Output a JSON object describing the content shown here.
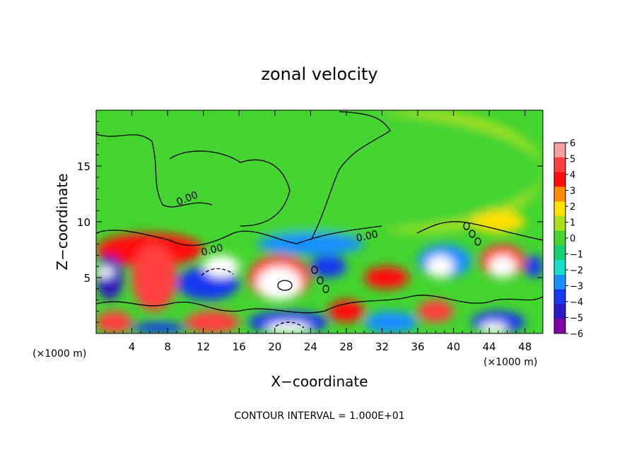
{
  "chart_data": {
    "type": "heatmap",
    "title": "zonal velocity",
    "xlabel": "X−coordinate",
    "ylabel": "Z−coordinate",
    "xlim": [
      0,
      50
    ],
    "ylim": [
      0,
      20
    ],
    "x_ticks": [
      4,
      8,
      12,
      16,
      20,
      24,
      28,
      32,
      36,
      40,
      44,
      48
    ],
    "y_ticks": [
      5,
      10,
      15
    ],
    "x_unit_left": "(×1000 m)",
    "x_unit_right": "(×1000 m)",
    "contour_label": "0.00",
    "footer": "CONTOUR INTERVAL = 1.000E+01",
    "colorbar": {
      "levels": [
        6,
        5,
        4,
        3,
        2,
        1,
        0,
        -1,
        -2,
        -3,
        -4,
        -5,
        -6
      ],
      "labels": [
        "6",
        "5",
        "4",
        "3",
        "2",
        "1",
        "0",
        "−1",
        "−2",
        "−3",
        "−4",
        "−5",
        "−6"
      ],
      "colors": [
        "#f4a0a0",
        "#ff4040",
        "#ff1010",
        "#ff8c00",
        "#ffe000",
        "#a8e020",
        "#44d430",
        "#18d070",
        "#18e0c8",
        "#1890ff",
        "#1838f0",
        "#3018c0",
        "#8000a8"
      ]
    },
    "regions": [
      {
        "value": 1,
        "x": [
          22,
          50
        ],
        "z": [
          9,
          20
        ]
      },
      {
        "value": 2,
        "x": [
          42,
          48
        ],
        "z": [
          9,
          11
        ]
      },
      {
        "value": 0,
        "x": [
          0,
          50
        ],
        "z": [
          9,
          20
        ]
      },
      {
        "value": -3,
        "x": [
          18,
          30
        ],
        "z": [
          7,
          9
        ]
      },
      {
        "value": 4,
        "x": [
          0,
          12
        ],
        "z": [
          6,
          9
        ]
      },
      {
        "value": -5,
        "x": [
          0,
          3
        ],
        "z": [
          3,
          7
        ]
      },
      {
        "value": 6,
        "x": [
          0,
          2
        ],
        "z": [
          5,
          6
        ]
      },
      {
        "value": 5,
        "x": [
          4,
          9
        ],
        "z": [
          2,
          8
        ]
      },
      {
        "value": -4,
        "x": [
          9,
          16
        ],
        "z": [
          3,
          6
        ]
      },
      {
        "value": 6,
        "x": [
          12,
          16
        ],
        "z": [
          5,
          7
        ]
      },
      {
        "value": 5,
        "x": [
          17,
          24
        ],
        "z": [
          3,
          7
        ]
      },
      {
        "value": 6,
        "x": [
          18,
          23
        ],
        "z": [
          3,
          6
        ]
      },
      {
        "value": -4,
        "x": [
          24,
          28
        ],
        "z": [
          5,
          7
        ]
      },
      {
        "value": 4,
        "x": [
          30,
          35
        ],
        "z": [
          4,
          6
        ]
      },
      {
        "value": -3,
        "x": [
          36,
          42
        ],
        "z": [
          5,
          8
        ]
      },
      {
        "value": 6,
        "x": [
          37,
          40
        ],
        "z": [
          5,
          7
        ]
      },
      {
        "value": 5,
        "x": [
          43,
          48
        ],
        "z": [
          5,
          8
        ]
      },
      {
        "value": 6,
        "x": [
          44,
          47
        ],
        "z": [
          5,
          7
        ]
      },
      {
        "value": -4,
        "x": [
          48,
          50
        ],
        "z": [
          5,
          7
        ]
      },
      {
        "value": 5,
        "x": [
          0,
          4
        ],
        "z": [
          0,
          2
        ]
      },
      {
        "value": -4,
        "x": [
          4,
          10
        ],
        "z": [
          0,
          1
        ]
      },
      {
        "value": 5,
        "x": [
          10,
          16
        ],
        "z": [
          0,
          2
        ]
      },
      {
        "value": -4,
        "x": [
          17,
          26
        ],
        "z": [
          0,
          2
        ]
      },
      {
        "value": 6,
        "x": [
          19,
          24
        ],
        "z": [
          0,
          1
        ]
      },
      {
        "value": 4,
        "x": [
          26,
          30
        ],
        "z": [
          1,
          3
        ]
      },
      {
        "value": -3,
        "x": [
          30,
          36
        ],
        "z": [
          0,
          2
        ]
      },
      {
        "value": 5,
        "x": [
          36,
          40
        ],
        "z": [
          1,
          3
        ]
      },
      {
        "value": -4,
        "x": [
          42,
          48
        ],
        "z": [
          0,
          2
        ]
      },
      {
        "value": 6,
        "x": [
          43,
          46
        ],
        "z": [
          0,
          1
        ]
      }
    ]
  }
}
